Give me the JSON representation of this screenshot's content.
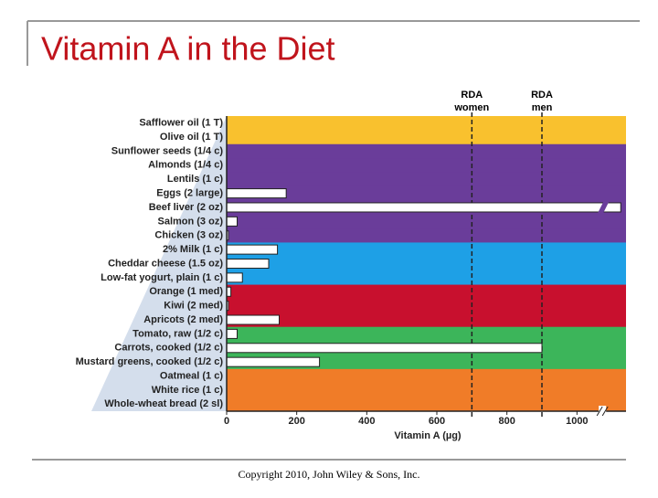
{
  "chart_data": {
    "type": "bar",
    "orientation": "horizontal",
    "title": "Vitamin A in the Diet",
    "footer": "Copyright 2010, John Wiley & Sons, Inc.",
    "x_label": "Vitamin A (µg)",
    "categories": [
      "Safflower oil (1 T)",
      "Olive oil (1 T)",
      "Sunflower seeds (1/4 c)",
      "Almonds (1/4 c)",
      "Lentils (1 c)",
      "Eggs (2 large)",
      "Beef liver (2 oz)",
      "Salmon (3 oz)",
      "Chicken (3 oz)",
      "2% Milk (1 c)",
      "Cheddar cheese (1.5 oz)",
      "Low-fat yogurt, plain (1 c)",
      "Orange (1 med)",
      "Kiwi (2 med)",
      "Apricots (2 med)",
      "Tomato, raw (1/2 c)",
      "Carrots, cooked (1/2 c)",
      "Mustard greens, cooked (1/2 c)",
      "Oatmeal (1 c)",
      "White rice (1 c)",
      "Whole-wheat bread (2 sl)"
    ],
    "values": [
      0,
      0,
      0,
      0,
      0,
      170,
      1125,
      30,
      5,
      145,
      120,
      45,
      12,
      5,
      150,
      30,
      900,
      265,
      0,
      0,
      0
    ],
    "color": "#ffffff",
    "band_colors": [
      "#f9c12e",
      "#f9c12e",
      "#6a3d9a",
      "#6a3d9a",
      "#6a3d9a",
      "#6a3d9a",
      "#6a3d9a",
      "#6a3d9a",
      "#6a3d9a",
      "#1ea0e6",
      "#1ea0e6",
      "#1ea0e6",
      "#c8102e",
      "#c8102e",
      "#c8102e",
      "#3cb55a",
      "#3cb55a",
      "#3cb55a",
      "#f07c28",
      "#f07c28",
      "#f07c28"
    ],
    "axis_break": 1070,
    "reference_lines": [
      {
        "value": 700,
        "label": [
          "RDA",
          "women"
        ]
      },
      {
        "value": 900,
        "label": [
          "RDA",
          "men"
        ]
      }
    ],
    "xlim": [
      0,
      1140
    ],
    "xticks": [
      0,
      200,
      400,
      600,
      800,
      1000
    ]
  }
}
